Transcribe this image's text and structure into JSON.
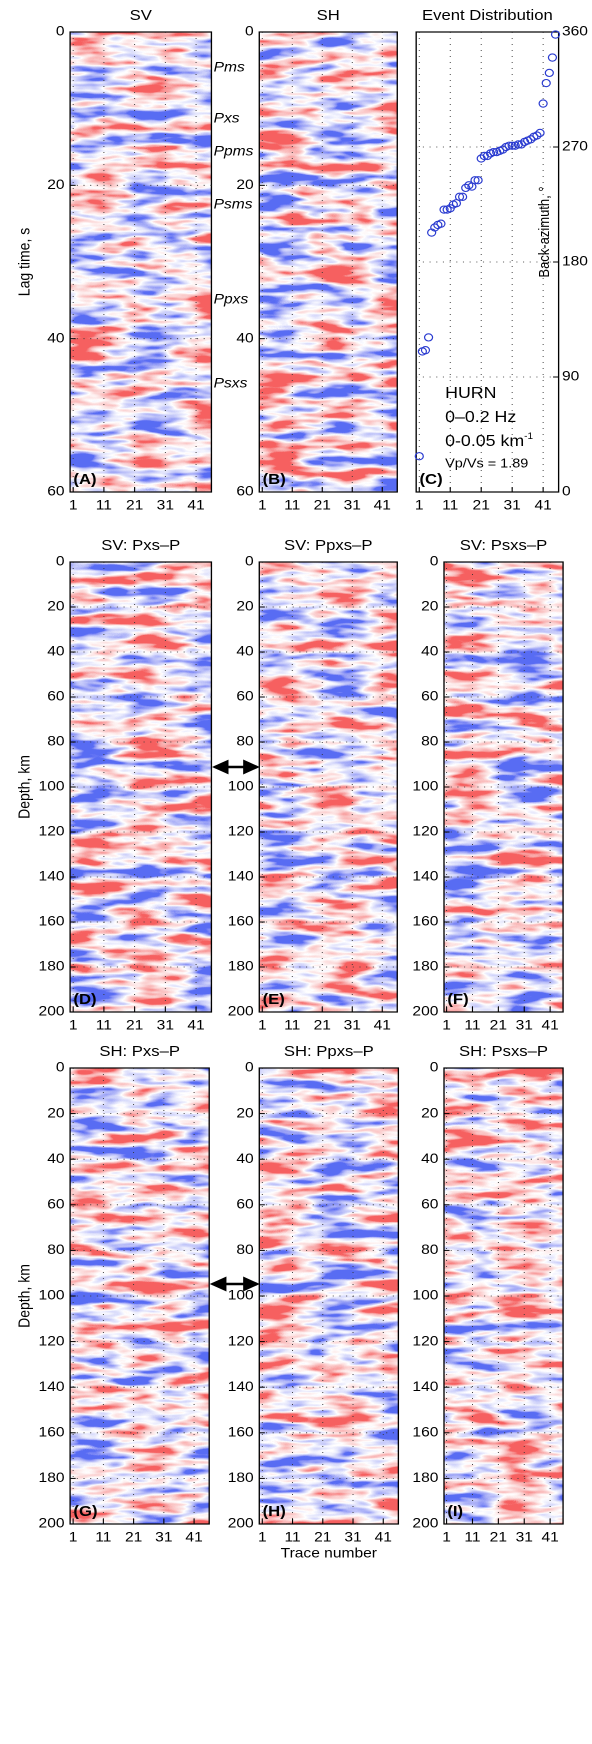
{
  "chart_data": [
    {
      "type": "heatmap",
      "title": "SV",
      "panel_label": "(A)",
      "ylabel": "Lag time, s",
      "annotations": [
        "Pms",
        "Pxs",
        "Ppms",
        "Psms",
        "Ppxs",
        "Psxs"
      ],
      "xlim": [
        0,
        46
      ],
      "xticks": [
        1,
        11,
        21,
        31,
        41
      ],
      "ylim": [
        0,
        60
      ],
      "yticks": [
        0,
        20,
        40,
        60
      ],
      "y_inverted": true,
      "grid": true
    },
    {
      "type": "heatmap",
      "title": "SH",
      "panel_label": "(B)",
      "xlim": [
        0,
        46
      ],
      "xticks": [
        1,
        11,
        21,
        31,
        41
      ],
      "ylim": [
        0,
        60
      ],
      "yticks": [
        0,
        20,
        40,
        60
      ],
      "y_inverted": true,
      "grid": true
    },
    {
      "type": "scatter",
      "title": "Event Distribution",
      "panel_label": "(C)",
      "ylabel": "Back-azimuth, °",
      "text_box": [
        "HURN",
        "0–0.2 Hz",
        "0-0.05 km",
        "Vp/Vs = 1.89"
      ],
      "text_box_superscript": "-1",
      "color": "#2a3bd0",
      "x": [
        1,
        2,
        3,
        4,
        5,
        6,
        7,
        8,
        9,
        10,
        11,
        12,
        13,
        14,
        15,
        16,
        17,
        18,
        19,
        20,
        21,
        22,
        23,
        24,
        25,
        26,
        27,
        28,
        29,
        30,
        31,
        32,
        33,
        34,
        35,
        36,
        37,
        38,
        39,
        40,
        41,
        42,
        43,
        44,
        45
      ],
      "values": [
        28,
        110,
        111,
        121,
        203,
        207,
        209,
        210,
        221,
        221,
        222,
        225,
        226,
        231,
        231,
        238,
        240,
        239,
        244,
        244,
        261,
        263,
        263,
        265,
        266,
        266,
        267,
        268,
        270,
        271,
        271,
        271,
        272,
        272,
        274,
        275,
        276,
        278,
        279,
        281,
        304,
        320,
        328,
        340,
        358
      ],
      "xlim": [
        0,
        46
      ],
      "xticks": [
        1,
        11,
        21,
        31,
        41
      ],
      "ylim": [
        0,
        360
      ],
      "yticks": [
        0,
        90,
        180,
        270,
        360
      ],
      "y_inverted": false,
      "grid": true
    },
    {
      "type": "heatmap",
      "title": "SV: Pxs–P",
      "panel_label": "(D)",
      "ylabel": "Depth, km",
      "xlim": [
        0,
        46
      ],
      "xticks": [
        1,
        11,
        21,
        31,
        41
      ],
      "ylim": [
        0,
        200
      ],
      "yticks": [
        0,
        20,
        40,
        60,
        80,
        100,
        120,
        140,
        160,
        180,
        200
      ],
      "y_inverted": true,
      "grid": true
    },
    {
      "type": "heatmap",
      "title": "SV:  Ppxs–P",
      "panel_label": "(E)",
      "xlim": [
        0,
        46
      ],
      "xticks": [
        1,
        11,
        21,
        31,
        41
      ],
      "ylim": [
        0,
        200
      ],
      "yticks": [
        0,
        20,
        40,
        60,
        80,
        100,
        120,
        140,
        160,
        180,
        200
      ],
      "y_inverted": true,
      "grid": true
    },
    {
      "type": "heatmap",
      "title": "SV: Psxs–P",
      "panel_label": "(F)",
      "xlim": [
        0,
        46
      ],
      "xticks": [
        1,
        11,
        21,
        31,
        41
      ],
      "ylim": [
        0,
        200
      ],
      "yticks": [
        0,
        20,
        40,
        60,
        80,
        100,
        120,
        140,
        160,
        180,
        200
      ],
      "y_inverted": true,
      "grid": true
    },
    {
      "type": "heatmap",
      "title": "SH: Pxs–P",
      "panel_label": "(G)",
      "ylabel": "Depth, km",
      "xlim": [
        0,
        46
      ],
      "xticks": [
        1,
        11,
        21,
        31,
        41
      ],
      "ylim": [
        0,
        200
      ],
      "yticks": [
        0,
        20,
        40,
        60,
        80,
        100,
        120,
        140,
        160,
        180,
        200
      ],
      "y_inverted": true,
      "grid": true
    },
    {
      "type": "heatmap",
      "title": "SH: Ppxs–P",
      "panel_label": "(H)",
      "xlabel": "Trace number",
      "xlim": [
        0,
        46
      ],
      "xticks": [
        1,
        11,
        21,
        31,
        41
      ],
      "ylim": [
        0,
        200
      ],
      "yticks": [
        0,
        20,
        40,
        60,
        80,
        100,
        120,
        140,
        160,
        180,
        200
      ],
      "y_inverted": true,
      "grid": true
    },
    {
      "type": "heatmap",
      "title": "SH: Psxs–P",
      "panel_label": "(I)",
      "xlim": [
        0,
        46
      ],
      "xticks": [
        1,
        11,
        21,
        31,
        41
      ],
      "ylim": [
        0,
        200
      ],
      "yticks": [
        0,
        20,
        40,
        60,
        80,
        100,
        120,
        140,
        160,
        180,
        200
      ],
      "y_inverted": true,
      "grid": true
    }
  ]
}
